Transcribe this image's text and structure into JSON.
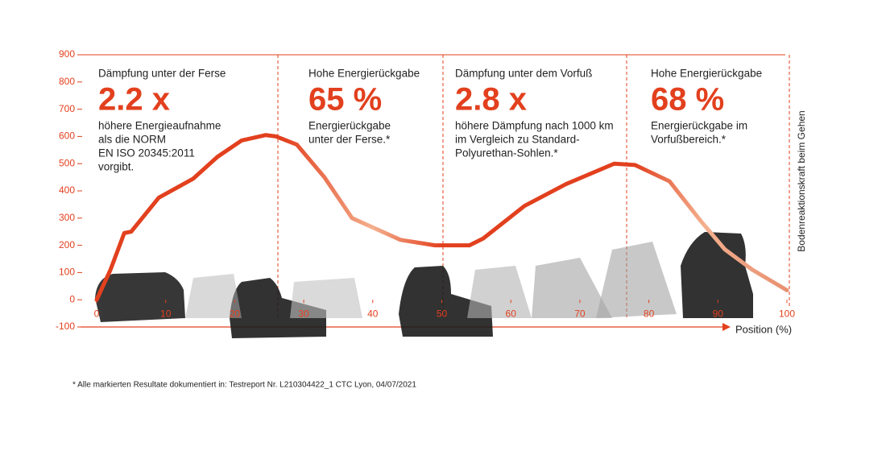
{
  "chart_data": {
    "type": "line",
    "x": [
      0,
      2,
      4,
      5,
      9,
      14,
      17.5,
      21,
      24.5,
      26,
      29,
      33,
      37,
      44,
      49,
      54,
      56,
      62,
      68,
      75,
      78,
      83,
      87.5,
      91,
      95,
      100
    ],
    "series": [
      {
        "color": "#e2401e",
        "values": [
          0,
          110,
          245,
          250,
          375,
          445,
          525,
          585,
          605,
          600,
          570,
          450,
          300,
          220,
          200,
          200,
          225,
          345,
          425,
          500,
          495,
          435,
          290,
          185,
          110,
          35
        ]
      }
    ],
    "xlim": [
      0,
      100
    ],
    "ylim": [
      -100,
      900
    ],
    "xticks": [
      0,
      10,
      20,
      30,
      40,
      50,
      60,
      70,
      80,
      90,
      100
    ],
    "yticks": [
      -100,
      0,
      100,
      200,
      300,
      400,
      500,
      600,
      700,
      800,
      900
    ],
    "grid": false,
    "x_label": "Position (%)",
    "y_label": "Bodenreaktionskraft beim Gehen",
    "panels": [
      {
        "heading": "Dämpfung unter der Ferse",
        "highlight": "2.2 x",
        "text": [
          "höhere Energieaufnahme",
          "als die NORM",
          "EN ISO 20345:2011",
          "vorgibt."
        ]
      },
      {
        "heading": "Hohe Energierückgabe",
        "highlight": "65 %",
        "text": [
          "Energierückgabe",
          "unter der Ferse.*"
        ]
      },
      {
        "heading": "Dämpfung unter dem Vorfuß",
        "highlight": "2.8 x",
        "text": [
          "höhere Dämpfung nach 1000 km",
          "im Vergleich zu Standard-",
          "Polyurethan-Sohlen.*"
        ]
      },
      {
        "heading": "Hohe Energierückgabe",
        "highlight": "68 %",
        "text": [
          "Energierückgabe im",
          "Vorfußbereich.*"
        ]
      }
    ],
    "footnote": "* Alle markierten Resultate dokumentiert in: Testreport Nr. L210304422_1 CTC Lyon, 04/07/2021"
  }
}
